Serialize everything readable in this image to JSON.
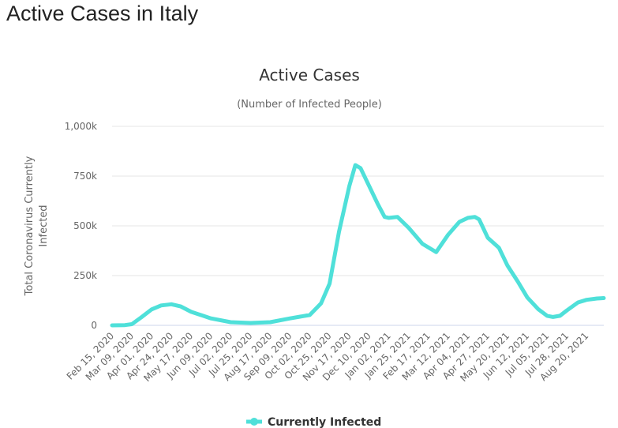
{
  "page": {
    "title": "Active Cases in Italy"
  },
  "chart_data": {
    "type": "line",
    "title": "Active Cases",
    "subtitle": "(Number of Infected People)",
    "xlabel": "",
    "ylabel": "Total Coronavirus Currently Infected",
    "ylabel_lines": [
      "Total Coronavirus Currently",
      "Infected"
    ],
    "ylim": [
      0,
      1000000
    ],
    "yticks": [
      0,
      250000,
      500000,
      750000,
      1000000
    ],
    "ytick_labels": [
      "0",
      "250k",
      "500k",
      "750k",
      "1,000k"
    ],
    "xlim": [
      "2020-02-15",
      "2021-09-09"
    ],
    "xtick_dates": [
      "2020-02-15",
      "2020-03-09",
      "2020-04-01",
      "2020-04-24",
      "2020-05-17",
      "2020-06-09",
      "2020-07-02",
      "2020-07-25",
      "2020-08-17",
      "2020-09-09",
      "2020-10-02",
      "2020-10-25",
      "2020-11-17",
      "2020-12-10",
      "2021-01-02",
      "2021-01-25",
      "2021-02-17",
      "2021-03-12",
      "2021-04-04",
      "2021-04-27",
      "2021-05-20",
      "2021-06-12",
      "2021-07-05",
      "2021-07-28",
      "2021-08-20"
    ],
    "xtick_labels": [
      "Feb 15, 2020",
      "Mar 09, 2020",
      "Apr 01, 2020",
      "Apr 24, 2020",
      "May 17, 2020",
      "Jun 09, 2020",
      "Jul 02, 2020",
      "Jul 25, 2020",
      "Aug 17, 2020",
      "Sep 09, 2020",
      "Oct 02, 2020",
      "Oct 25, 2020",
      "Nov 17, 2020",
      "Dec 10, 2020",
      "Jan 02, 2021",
      "Jan 25, 2021",
      "Feb 17, 2021",
      "Mar 12, 2021",
      "Apr 04, 2021",
      "Apr 27, 2021",
      "May 20, 2021",
      "Jun 12, 2021",
      "Jul 05, 2021",
      "Jul 28, 2021",
      "Aug 20, 2021"
    ],
    "grid": true,
    "legend_position": "bottom",
    "colors": {
      "series": "#4fe0d9",
      "grid": "#e6e6e6",
      "axis": "#ccd6eb",
      "text": "#666666"
    },
    "series": [
      {
        "name": "Currently Infected",
        "points": [
          [
            "2020-02-15",
            0
          ],
          [
            "2020-03-01",
            1000
          ],
          [
            "2020-03-09",
            6000
          ],
          [
            "2020-03-20",
            40000
          ],
          [
            "2020-04-01",
            80000
          ],
          [
            "2020-04-12",
            100000
          ],
          [
            "2020-04-24",
            106000
          ],
          [
            "2020-05-05",
            95000
          ],
          [
            "2020-05-17",
            68000
          ],
          [
            "2020-06-09",
            35000
          ],
          [
            "2020-07-02",
            16000
          ],
          [
            "2020-07-25",
            12000
          ],
          [
            "2020-08-17",
            16000
          ],
          [
            "2020-09-09",
            35000
          ],
          [
            "2020-10-02",
            52000
          ],
          [
            "2020-10-15",
            110000
          ],
          [
            "2020-10-25",
            210000
          ],
          [
            "2020-11-05",
            470000
          ],
          [
            "2020-11-17",
            700000
          ],
          [
            "2020-11-24",
            805000
          ],
          [
            "2020-11-30",
            790000
          ],
          [
            "2020-12-10",
            700000
          ],
          [
            "2020-12-20",
            610000
          ],
          [
            "2020-12-28",
            545000
          ],
          [
            "2021-01-02",
            540000
          ],
          [
            "2021-01-12",
            545000
          ],
          [
            "2021-01-25",
            490000
          ],
          [
            "2021-02-10",
            410000
          ],
          [
            "2021-02-26",
            368000
          ],
          [
            "2021-03-12",
            456000
          ],
          [
            "2021-03-25",
            520000
          ],
          [
            "2021-04-04",
            540000
          ],
          [
            "2021-04-12",
            545000
          ],
          [
            "2021-04-17",
            532000
          ],
          [
            "2021-04-27",
            440000
          ],
          [
            "2021-05-10",
            390000
          ],
          [
            "2021-05-20",
            300000
          ],
          [
            "2021-06-01",
            220000
          ],
          [
            "2021-06-12",
            140000
          ],
          [
            "2021-06-25",
            80000
          ],
          [
            "2021-07-05",
            48000
          ],
          [
            "2021-07-12",
            42000
          ],
          [
            "2021-07-20",
            48000
          ],
          [
            "2021-07-28",
            75000
          ],
          [
            "2021-08-10",
            115000
          ],
          [
            "2021-08-20",
            128000
          ],
          [
            "2021-09-01",
            135000
          ],
          [
            "2021-09-09",
            137000
          ]
        ]
      }
    ]
  }
}
